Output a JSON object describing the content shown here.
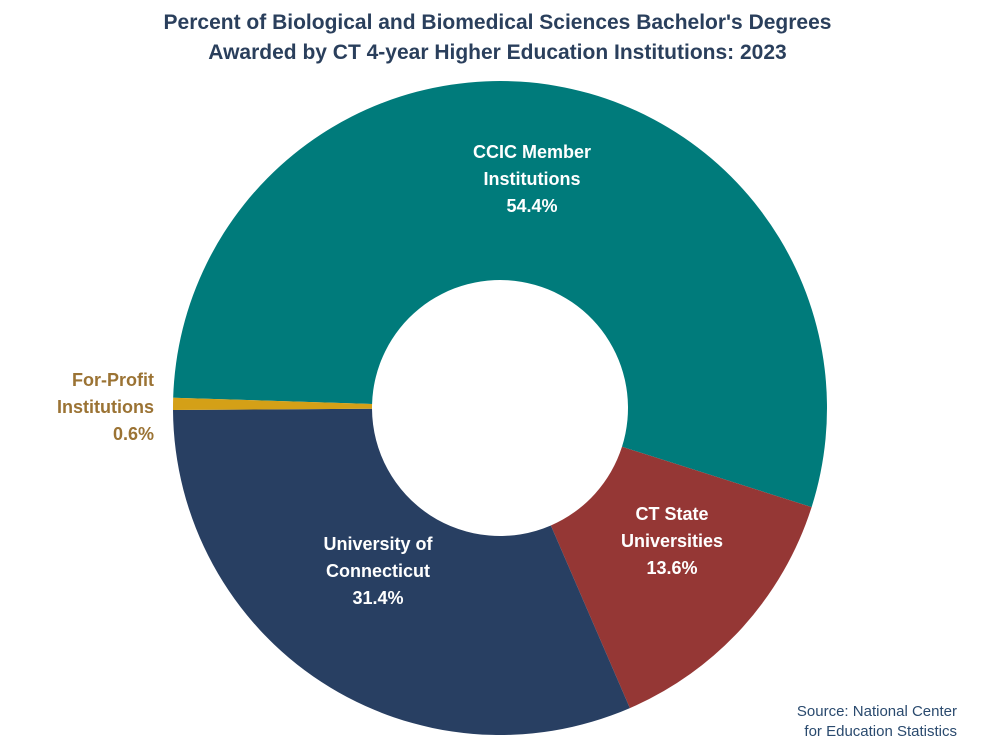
{
  "chart_data": {
    "type": "pie",
    "title_lines": [
      "Percent of Biological and Biomedical Sciences Bachelor's Degrees",
      "Awarded by CT 4-year Higher Education Institutions: 2023"
    ],
    "hole": true,
    "slices": [
      {
        "label_lines": [
          "CCIC Member",
          "Institutions"
        ],
        "value_label": "54.4%",
        "value": 54.4,
        "color": "#007b7b",
        "label_color": "#ffffff"
      },
      {
        "label_lines": [
          "CT State",
          "Universities"
        ],
        "value_label": "13.6%",
        "value": 13.6,
        "color": "#953735",
        "label_color": "#ffffff"
      },
      {
        "label_lines": [
          "University of",
          "Connecticut"
        ],
        "value_label": "31.4%",
        "value": 31.4,
        "color": "#283f62",
        "label_color": "#ffffff"
      },
      {
        "label_lines": [
          "For-Profit",
          "Institutions"
        ],
        "value_label": "0.6%",
        "value": 0.6,
        "color": "#d4a017",
        "label_color": "#9b7334"
      }
    ]
  },
  "source": {
    "line1": "Source:  National Center",
    "line2": "for Education Statistics"
  }
}
